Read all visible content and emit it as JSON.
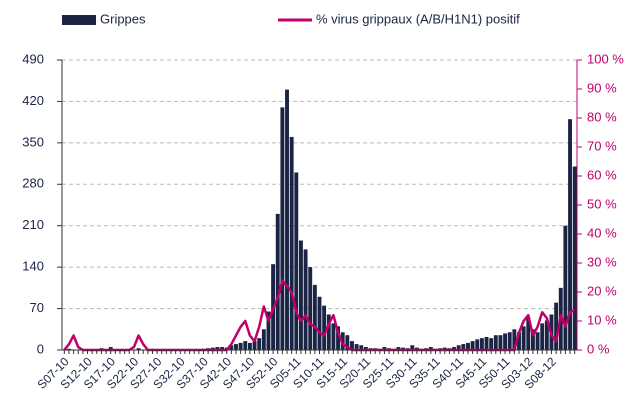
{
  "chart_data": {
    "type": "bar_line",
    "categories": [
      "S07-10",
      null,
      null,
      null,
      null,
      "S12-10",
      null,
      null,
      null,
      null,
      "S17-10",
      null,
      null,
      null,
      null,
      "S22-10",
      null,
      null,
      null,
      null,
      "S27-10",
      null,
      null,
      null,
      null,
      "S32-10",
      null,
      null,
      null,
      null,
      "S37-10",
      null,
      null,
      null,
      null,
      "S42-10",
      null,
      null,
      null,
      null,
      "S47-10",
      null,
      null,
      null,
      null,
      "S52-10",
      null,
      null,
      null,
      null,
      "S05-11",
      null,
      null,
      null,
      null,
      "S10-11",
      null,
      null,
      null,
      null,
      "S15-11",
      null,
      null,
      null,
      null,
      "S20-11",
      null,
      null,
      null,
      null,
      "S25-11",
      null,
      null,
      null,
      null,
      "S30-11",
      null,
      null,
      null,
      null,
      "S35-11",
      null,
      null,
      null,
      null,
      "S40-11",
      null,
      null,
      null,
      null,
      "S45-11",
      null,
      null,
      null,
      null,
      "S50-11",
      null,
      null,
      null,
      null,
      "S03-12",
      null,
      null,
      null,
      null,
      "S08-12",
      null,
      null,
      null,
      null,
      null
    ],
    "series": [
      {
        "name": "Grippes",
        "color": "#1a2444",
        "axis": "y",
        "values": [
          0,
          2,
          0,
          0,
          0,
          0,
          0,
          0,
          3,
          0,
          5,
          0,
          0,
          0,
          0,
          0,
          3,
          0,
          0,
          2,
          0,
          0,
          0,
          0,
          0,
          0,
          0,
          0,
          0,
          0,
          2,
          3,
          4,
          5,
          5,
          4,
          8,
          10,
          12,
          15,
          12,
          15,
          20,
          35,
          65,
          145,
          230,
          410,
          440,
          360,
          300,
          185,
          170,
          140,
          110,
          90,
          75,
          60,
          45,
          40,
          30,
          25,
          15,
          10,
          8,
          5,
          3,
          3,
          2,
          5,
          3,
          2,
          5,
          4,
          3,
          8,
          4,
          2,
          3,
          5,
          2,
          3,
          4,
          3,
          5,
          8,
          10,
          12,
          15,
          18,
          20,
          22,
          20,
          25,
          25,
          28,
          30,
          35,
          30,
          40,
          55,
          35,
          30,
          45,
          50,
          60,
          80,
          105,
          210,
          390,
          310
        ]
      },
      {
        "name": "% virus grippaux (A/B/H1N1) positif",
        "color": "#c0006a",
        "axis": "y2",
        "values": [
          0,
          2,
          5,
          1,
          0,
          0,
          0,
          0,
          0,
          0,
          0,
          0,
          0,
          0,
          0,
          1,
          5,
          2,
          0,
          0,
          0,
          0,
          0,
          0,
          0,
          0,
          0,
          0,
          0,
          0,
          0,
          0,
          0,
          0,
          0,
          0,
          2,
          5,
          8,
          10,
          5,
          3,
          8,
          15,
          10,
          14,
          18,
          24,
          22,
          20,
          13,
          10,
          12,
          9,
          8,
          6,
          5,
          9,
          12,
          6,
          2,
          1,
          0,
          0,
          0,
          0,
          0,
          0,
          0,
          0,
          0,
          0,
          0,
          0,
          0,
          0,
          0,
          0,
          0,
          0,
          0,
          0,
          0,
          0,
          0,
          0,
          0,
          0,
          0,
          0,
          0,
          0,
          0,
          0,
          0,
          0,
          0,
          0,
          6,
          10,
          12,
          5,
          8,
          13,
          11,
          5,
          3,
          12,
          8,
          13,
          14
        ]
      }
    ],
    "ylim": [
      0,
      490
    ],
    "yticks": [
      0,
      70,
      140,
      210,
      280,
      350,
      420,
      490
    ],
    "y2lim": [
      0,
      100
    ],
    "y2ticks": [
      {
        "value": 0,
        "label": "0 %"
      },
      {
        "value": 10,
        "label": "10 %"
      },
      {
        "value": 20,
        "label": "20 %"
      },
      {
        "value": 30,
        "label": "30 %"
      },
      {
        "value": 40,
        "label": "40 %"
      },
      {
        "value": 50,
        "label": "50 %"
      },
      {
        "value": 60,
        "label": "60 %"
      },
      {
        "value": 70,
        "label": "70 %"
      },
      {
        "value": 80,
        "label": "80 %"
      },
      {
        "value": 90,
        "label": "90 %"
      },
      {
        "value": 100,
        "label": "100 %"
      }
    ],
    "grid": true
  }
}
